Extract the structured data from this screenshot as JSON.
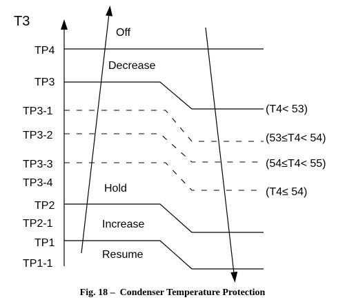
{
  "axis": {
    "label": "T3"
  },
  "levels": {
    "tp4": "TP4",
    "tp3": "TP3",
    "tp3_1": "TP3-1",
    "tp3_2": "TP3-2",
    "tp3_3": "TP3-3",
    "tp3_4": "TP3-4",
    "tp2": "TP2",
    "tp2_1": "TP2-1",
    "tp1": "TP1",
    "tp1_1": "TP1-1"
  },
  "zones": {
    "off": "Off",
    "decrease": "Decrease",
    "hold": "Hold",
    "increase": "Increase",
    "resume": "Resume"
  },
  "conditions": {
    "c1": "(T4< 53)",
    "c2": "(53≤T4< 54)",
    "c3": "(54≤T4< 55)",
    "c4": "(T4≤ 54)"
  },
  "caption": "Fig. 18 –  Condenser Temperature Protection"
}
